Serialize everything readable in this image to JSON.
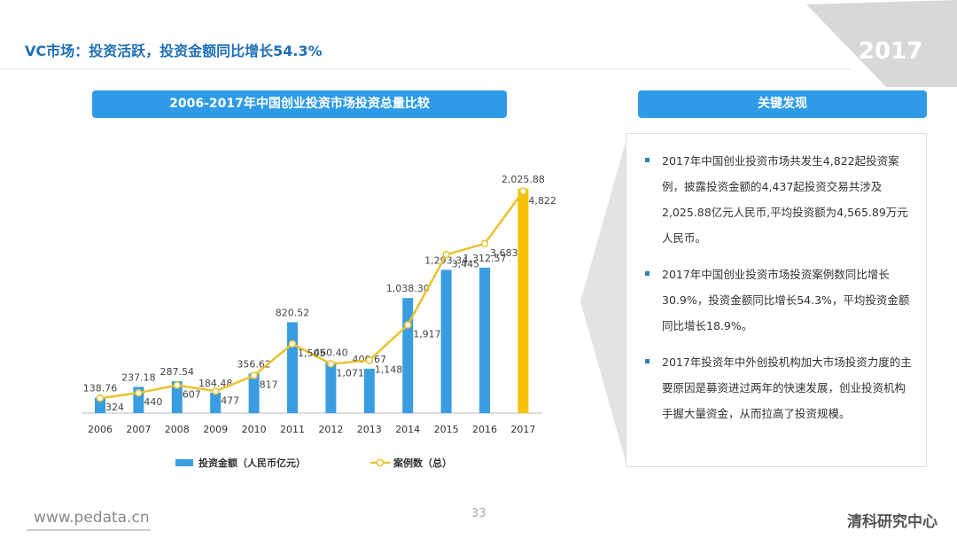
{
  "header": {
    "title": "VC市场：投资活跃，投资金额同比增长54.3%",
    "year_badge": "2017"
  },
  "chart_data": {
    "type": "bar",
    "title": "2006-2017年中国创业投资市场投资总量比较",
    "categories": [
      "2006",
      "2007",
      "2008",
      "2009",
      "2010",
      "2011",
      "2012",
      "2013",
      "2014",
      "2015",
      "2016",
      "2017"
    ],
    "series": [
      {
        "name": "投资金额（人民币亿元）",
        "type": "bar",
        "color": "#3a9de2",
        "colors": [
          "#3a9de2",
          "#3a9de2",
          "#3a9de2",
          "#3a9de2",
          "#3a9de2",
          "#3a9de2",
          "#3a9de2",
          "#3a9de2",
          "#3a9de2",
          "#3a9de2",
          "#3a9de2",
          "#f6c100"
        ],
        "values": [
          138.76,
          237.18,
          287.54,
          184.48,
          356.62,
          820.52,
          460.4,
          400.67,
          1038.3,
          1293.34,
          1312.57,
          2025.88
        ],
        "value_labels": [
          "138.76",
          "237.18",
          "287.54",
          "184.48",
          "356.62",
          "820.52",
          "460.40",
          "400.67",
          "1,038.30",
          "1,293.34",
          "1,312.57",
          "2,025.88"
        ]
      },
      {
        "name": "案例数（总）",
        "type": "line",
        "axis": "y2",
        "color": "#e9c22e",
        "values": [
          324,
          440,
          607,
          477,
          817,
          1505,
          1071,
          1148,
          1917,
          3445,
          3683,
          4822
        ],
        "value_labels": [
          "324",
          "440",
          "607",
          "477",
          "817",
          "1,505",
          "1,071",
          "1,148",
          "1,917",
          "3,445",
          "3,683",
          "4,822"
        ]
      }
    ],
    "ylim": [
      0,
      2200
    ],
    "y2lim": [
      0,
      5300
    ]
  },
  "findings": {
    "title": "关键发现",
    "items": [
      "2017年中国创业投资市场共发生4,822起投资案例，披露投资金额的4,437起投资交易共涉及2,025.88亿元人民币,平均投资额为4,565.89万元人民币。",
      "2017年中国创业投资市场投资案例数同比增长30.9%，投资金额同比增长54.3%，平均投资金额同比增长18.9%。",
      "2017年投资年中外创投机构加大市场投资力度的主要原因是募资进过两年的快速发展，创业投资机构手握大量资金，从而拉高了投资规模。"
    ]
  },
  "footer": {
    "url": "www.pedata.cn",
    "page": 33,
    "brand": "清科研究中心"
  }
}
